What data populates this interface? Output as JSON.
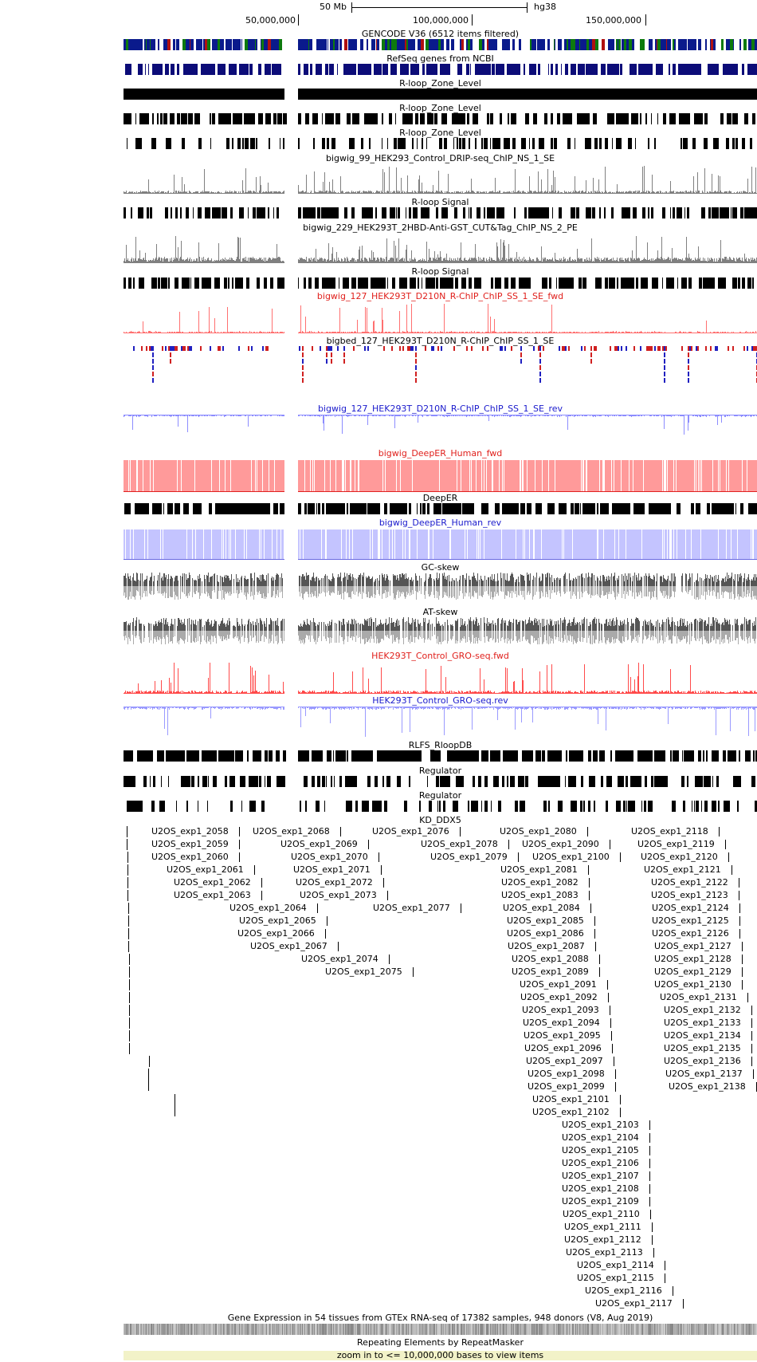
{
  "ruler": {
    "scale_label": "50 Mb",
    "assembly": "hg38",
    "ticks": [
      "50,000,000",
      "100,000,000",
      "150,000,000"
    ]
  },
  "tracks": {
    "gencode": "GENCODE V36 (6512 items filtered)",
    "refseq": "RefSeq genes from NCBI",
    "rloop_zone_1": "R-loop_Zone_Level",
    "rloop_zone_2": "R-loop_Zone_Level",
    "rloop_zone_3": "R-loop_Zone_Level",
    "drip_99": "bigwig_99_HEK293_Control_DRIP-seq_ChIP_NS_1_SE",
    "rloop_signal_1": "R-loop Signal",
    "cut_229": "bigwig_229_HEK293T_2HBD-Anti-GST_CUT&Tag_ChIP_NS_2_PE",
    "rloop_signal_2": "R-loop Signal",
    "rchip_fwd": "bigwig_127_HEK293T_D210N_R-ChIP_ChIP_SS_1_SE_fwd",
    "rchip_bed": "bigbed_127_HEK293T_D210N_R-ChIP_ChIP_SS_1_SE",
    "rchip_rev": "bigwig_127_HEK293T_D210N_R-ChIP_ChIP_SS_1_SE_rev",
    "deeper_fwd": "bigwig_DeepER_Human_fwd",
    "deeper": "DeepER",
    "deeper_rev": "bigwig_DeepER_Human_rev",
    "gc_skew": "GC-skew",
    "at_skew": "AT-skew",
    "gro_fwd": "HEK293T_Control_GRO-seq.fwd",
    "gro_rev": "HEK293T_Control_GRO-seq.rev",
    "rlfs": "RLFS_RloopDB",
    "regulator_1": "Regulator",
    "regulator_2": "Regulator",
    "kd_ddx5": "KD_DDX5",
    "gtex": "Gene Expression in 54 tissues from GTEx RNA-seq of 17382 samples, 948 donors (V8, Aug 2019)",
    "repeatmasker": "Repeating Elements by RepeatMasker",
    "zoom_msg": "zoom in to <= 10,000,000 bases to view items"
  },
  "colors": {
    "gencode_blue": "#0a1a8c",
    "gencode_green": "#0d7a0d",
    "gencode_red": "#b01010",
    "refseq_blue": "#0c0c78",
    "signal_gray": "#808080",
    "fwd_red": "#ff7070",
    "fwd_red_fill": "#ff9a9a",
    "rev_blue": "#8c8cff",
    "rev_blue_fill": "#c4c4ff",
    "title_red": "#e0201c",
    "title_blue": "#1a1acc",
    "zoom_bg": "#f2f2c8"
  },
  "kd_items": [
    "U2OS_exp1_2058",
    "U2OS_exp1_2059",
    "U2OS_exp1_2060",
    "U2OS_exp1_2061",
    "U2OS_exp1_2062",
    "U2OS_exp1_2063",
    "U2OS_exp1_2064",
    "U2OS_exp1_2065",
    "U2OS_exp1_2066",
    "U2OS_exp1_2067",
    "U2OS_exp1_2068",
    "U2OS_exp1_2069",
    "U2OS_exp1_2070",
    "U2OS_exp1_2071",
    "U2OS_exp1_2072",
    "U2OS_exp1_2073",
    "U2OS_exp1_2074",
    "U2OS_exp1_2075",
    "U2OS_exp1_2076",
    "U2OS_exp1_2077",
    "U2OS_exp1_2078",
    "U2OS_exp1_2079",
    "U2OS_exp1_2080",
    "U2OS_exp1_2081",
    "U2OS_exp1_2082",
    "U2OS_exp1_2083",
    "U2OS_exp1_2084",
    "U2OS_exp1_2085",
    "U2OS_exp1_2086",
    "U2OS_exp1_2087",
    "U2OS_exp1_2088",
    "U2OS_exp1_2089",
    "U2OS_exp1_2090",
    "U2OS_exp1_2091",
    "U2OS_exp1_2092",
    "U2OS_exp1_2093",
    "U2OS_exp1_2094",
    "U2OS_exp1_2095",
    "U2OS_exp1_2096",
    "U2OS_exp1_2097",
    "U2OS_exp1_2098",
    "U2OS_exp1_2099",
    "U2OS_exp1_2100",
    "U2OS_exp1_2101",
    "U2OS_exp1_2102",
    "U2OS_exp1_2103",
    "U2OS_exp1_2104",
    "U2OS_exp1_2105",
    "U2OS_exp1_2106",
    "U2OS_exp1_2107",
    "U2OS_exp1_2108",
    "U2OS_exp1_2109",
    "U2OS_exp1_2110",
    "U2OS_exp1_2111",
    "U2OS_exp1_2112",
    "U2OS_exp1_2113",
    "U2OS_exp1_2114",
    "U2OS_exp1_2115",
    "U2OS_exp1_2116",
    "U2OS_exp1_2117",
    "U2OS_exp1_2118",
    "U2OS_exp1_2119",
    "U2OS_exp1_2120",
    "U2OS_exp1_2121",
    "U2OS_exp1_2122",
    "U2OS_exp1_2123",
    "U2OS_exp1_2124",
    "U2OS_exp1_2125",
    "U2OS_exp1_2126",
    "U2OS_exp1_2127",
    "U2OS_exp1_2128",
    "U2OS_exp1_2129",
    "U2OS_exp1_2130",
    "U2OS_exp1_2131",
    "U2OS_exp1_2132",
    "U2OS_exp1_2133",
    "U2OS_exp1_2134",
    "U2OS_exp1_2135",
    "U2OS_exp1_2136",
    "U2OS_exp1_2137",
    "U2OS_exp1_2138"
  ]
}
